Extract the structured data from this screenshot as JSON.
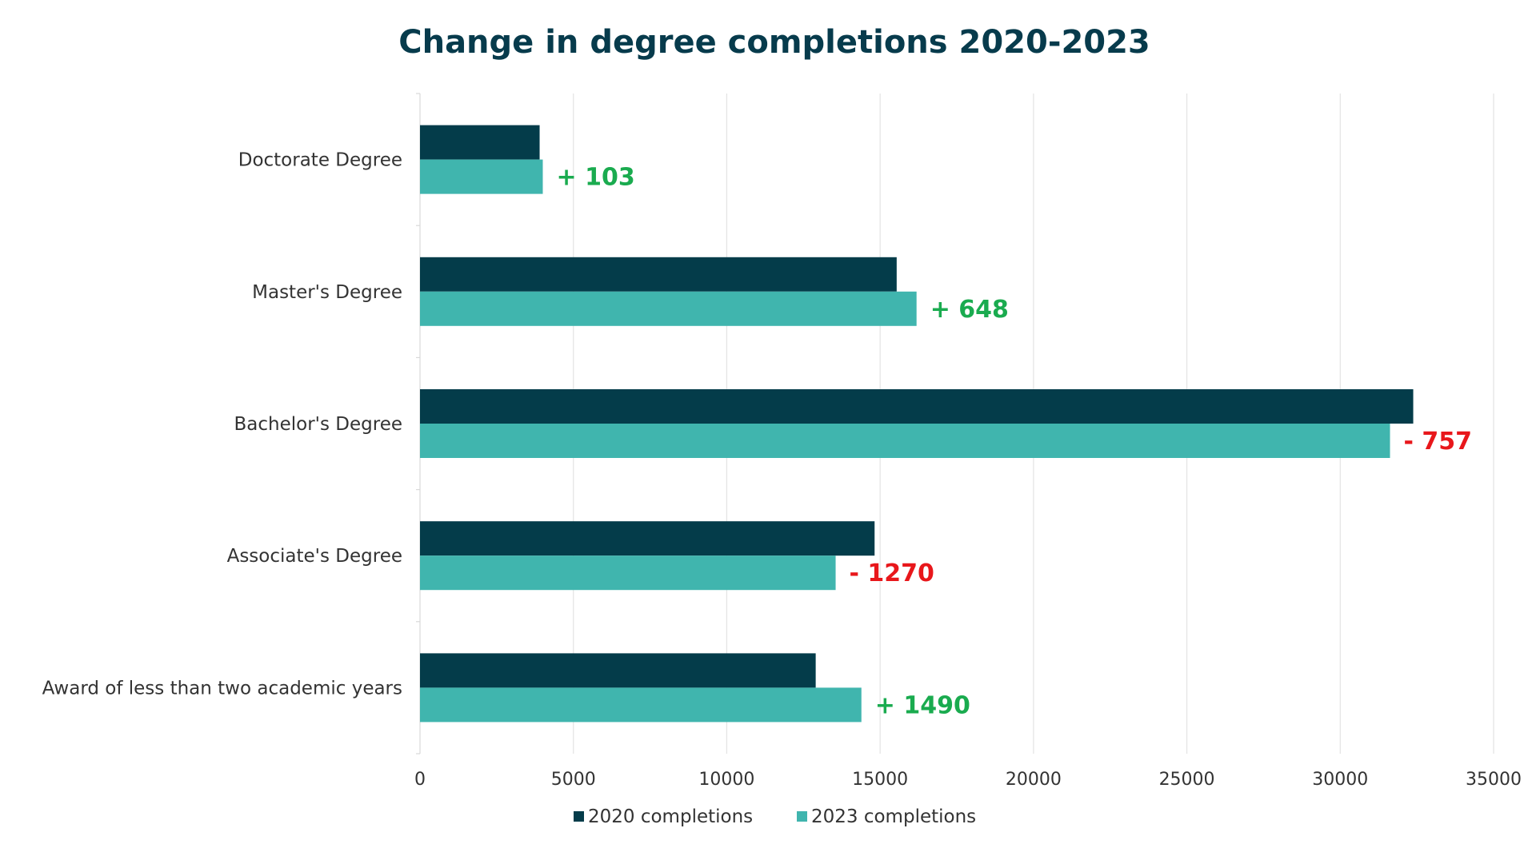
{
  "chart_data": {
    "type": "bar",
    "orientation": "horizontal",
    "title": "Change in degree completions 2020-2023",
    "categories": [
      "Doctorate Degree",
      "Master's Degree",
      "Bachelor's Degree",
      "Associate's Degree",
      "Award of less than two academic years"
    ],
    "series": [
      {
        "name": "2020 completions",
        "color": "#043c4a",
        "values": [
          3900,
          15540,
          32380,
          14820,
          12900
        ]
      },
      {
        "name": "2023 completions",
        "color": "#40b5ae",
        "values": [
          4003,
          16188,
          31623,
          13550,
          14390
        ]
      }
    ],
    "annotations": [
      "+ 103",
      "+ 648",
      "- 757",
      "- 1270",
      "+ 1490"
    ],
    "annotation_colors": [
      "#1aab4f",
      "#1aab4f",
      "#e8171b",
      "#e8171b",
      "#1aab4f"
    ],
    "xlim": [
      0,
      35000
    ],
    "xticks": [
      0,
      5000,
      10000,
      15000,
      20000,
      25000,
      30000,
      35000
    ],
    "xtick_labels": [
      "0",
      "5000",
      "10000",
      "15000",
      "20000",
      "25000",
      "30000",
      "35000"
    ],
    "grid": "vertical",
    "legend_position": "bottom"
  }
}
